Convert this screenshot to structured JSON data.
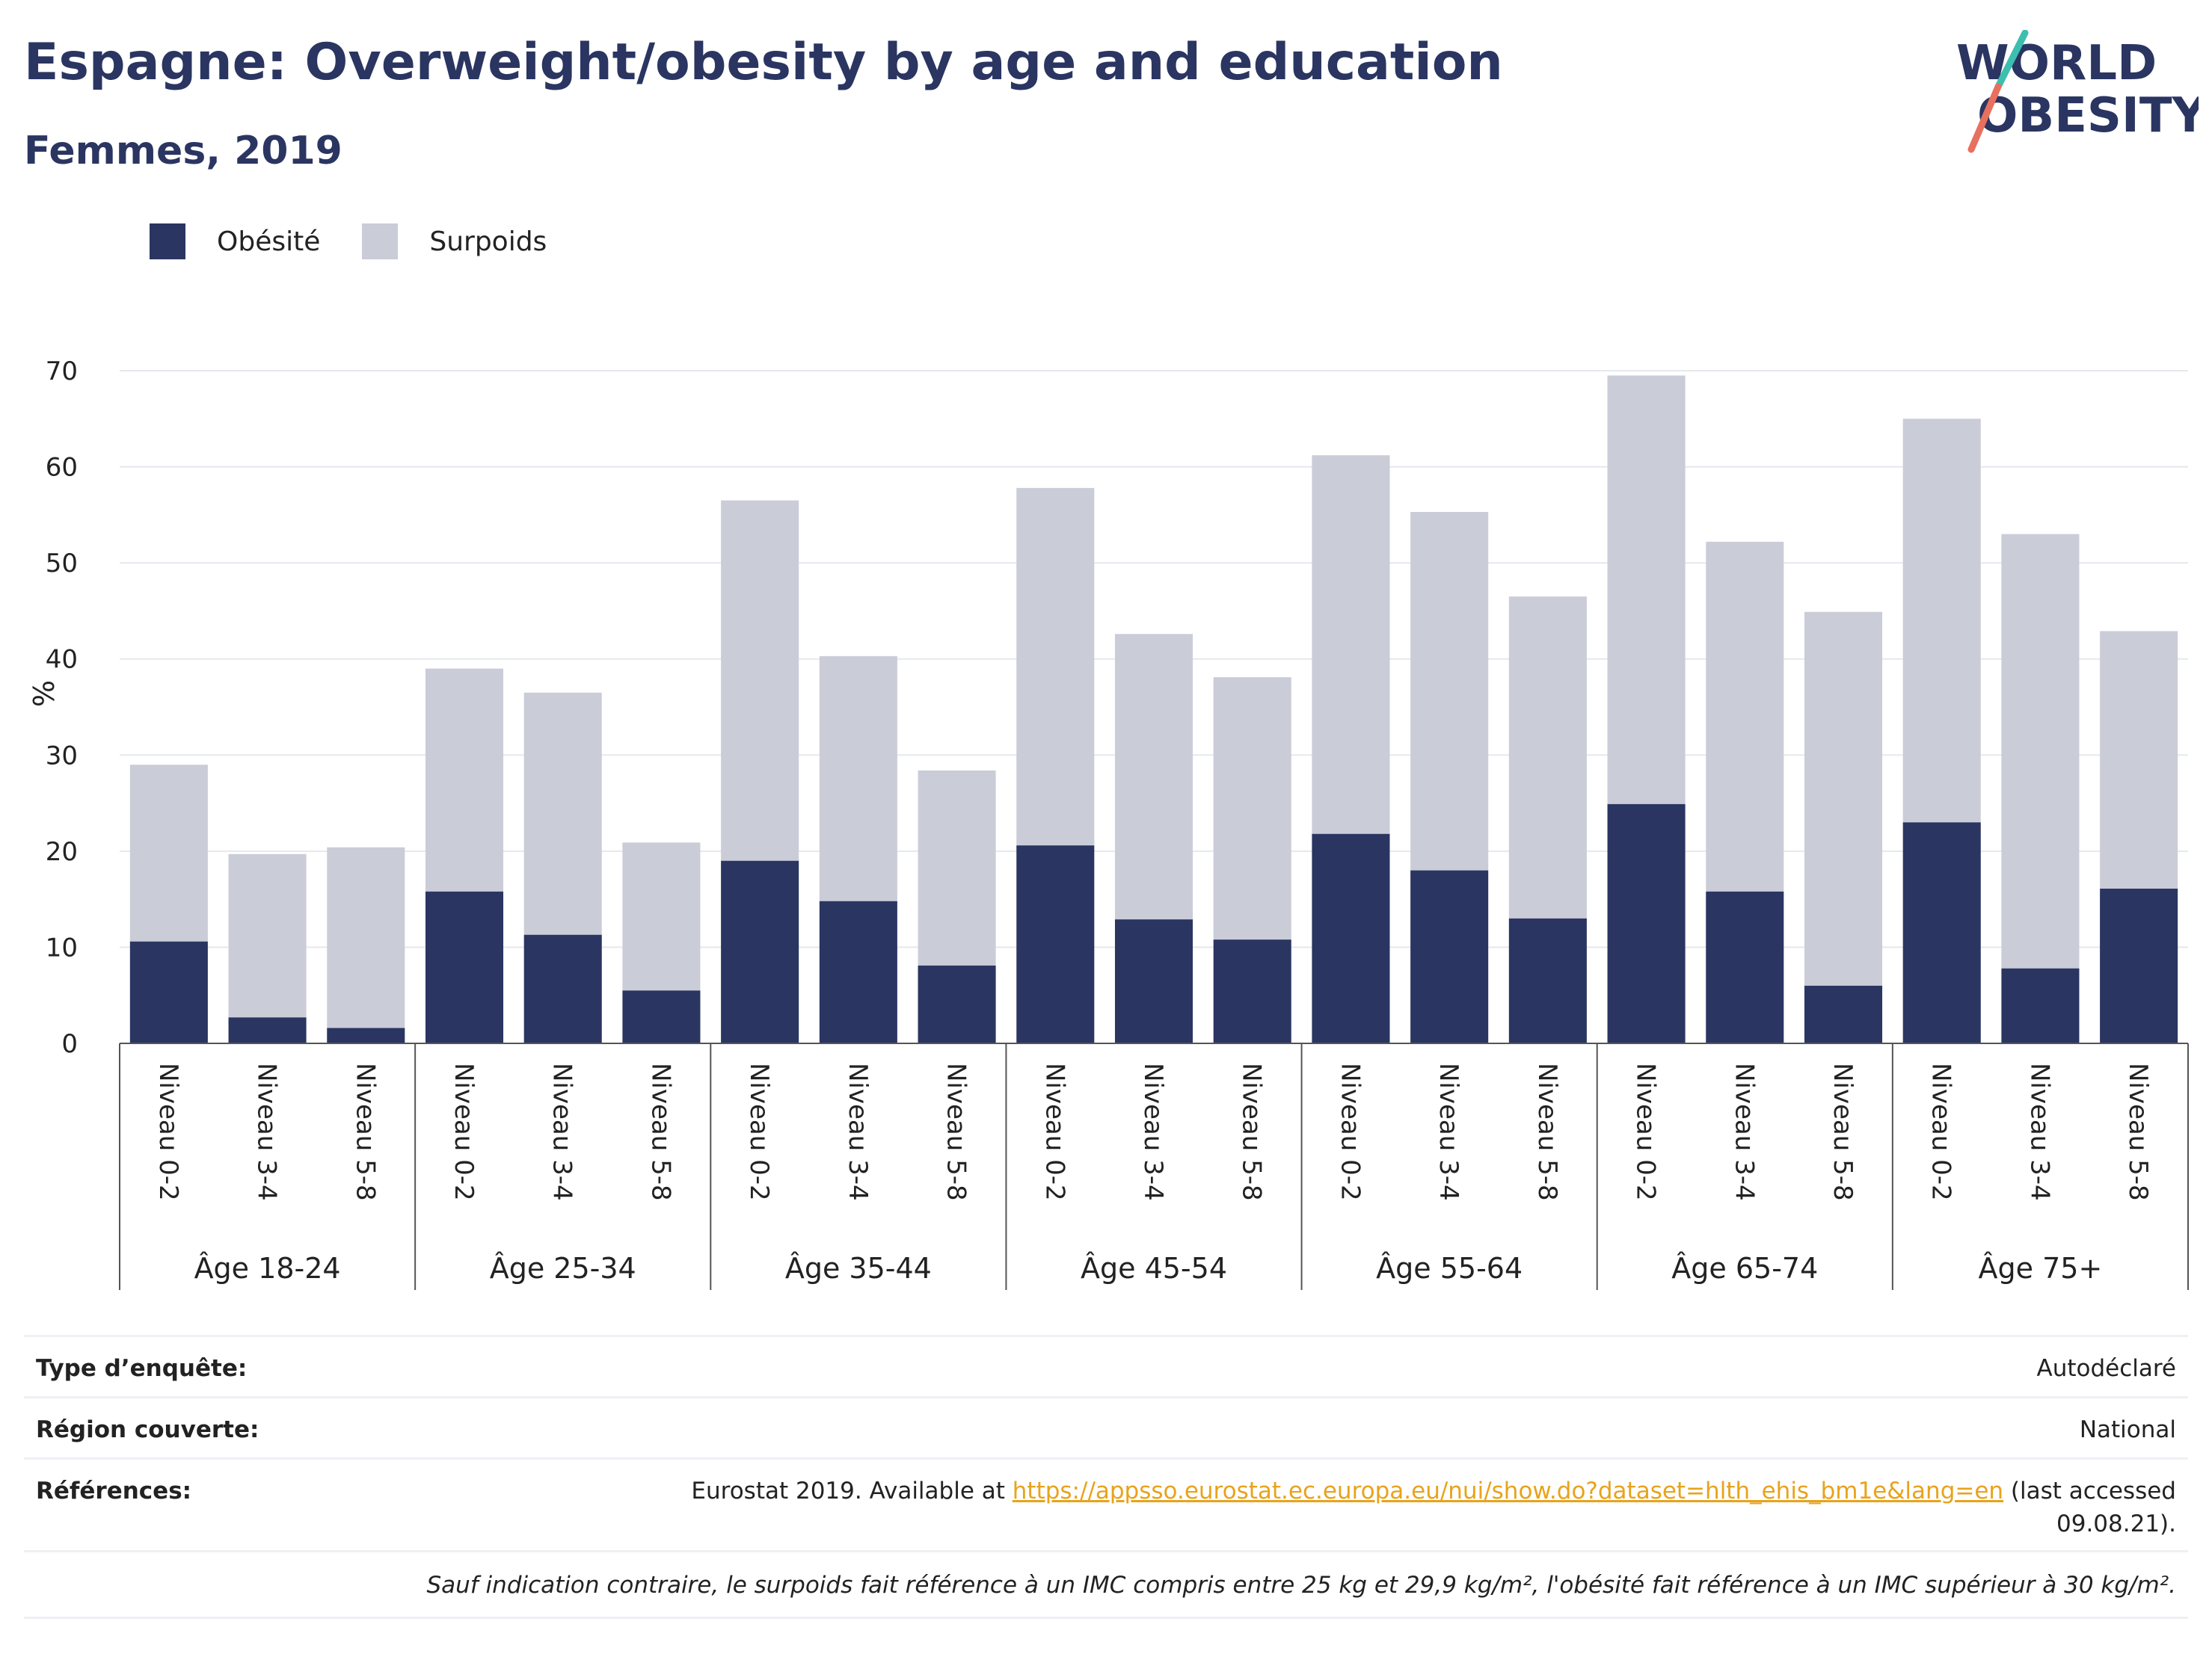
{
  "header": {
    "title": "Espagne: Overweight/obesity by age and education",
    "subtitle": "Femmes, 2019",
    "logo_line1": "WORLD",
    "logo_line2": "OBESITY"
  },
  "colors": {
    "obesity": "#2a3561",
    "overweight": "#caccd8",
    "title": "#2a3561",
    "link": "#e8a31b",
    "logo_teal": "#3cbfae",
    "logo_coral": "#e8705e"
  },
  "chart_data": {
    "type": "bar",
    "stacked": true,
    "ylabel": "%",
    "ylim": [
      0,
      70
    ],
    "yticks": [
      0,
      10,
      20,
      30,
      40,
      50,
      60,
      70
    ],
    "grid": true,
    "legend_position": "top-left",
    "group_label_prefix": "Âge",
    "groups": [
      "Âge 18-24",
      "Âge 25-34",
      "Âge 35-44",
      "Âge 45-54",
      "Âge 55-64",
      "Âge 65-74",
      "Âge 75+"
    ],
    "sub_categories": [
      "Niveau 0-2",
      "Niveau 3-4",
      "Niveau 5-8"
    ],
    "series": [
      {
        "name": "Obésité",
        "color": "#2a3561",
        "values": [
          10.6,
          2.7,
          1.6,
          15.8,
          11.3,
          5.5,
          19.0,
          14.8,
          8.1,
          20.6,
          12.9,
          10.8,
          21.8,
          18.0,
          13.0,
          24.9,
          15.8,
          6.0,
          23.0,
          7.8,
          16.1
        ]
      },
      {
        "name": "Surpoids",
        "color": "#caccd8",
        "values": [
          18.4,
          17.0,
          18.8,
          23.2,
          25.2,
          15.4,
          37.5,
          25.5,
          20.3,
          37.2,
          29.7,
          27.3,
          39.4,
          37.3,
          33.5,
          44.6,
          36.4,
          38.9,
          42.0,
          45.2,
          26.8
        ]
      }
    ]
  },
  "info": {
    "survey_label": "Type d’enquête:",
    "survey_value": "Autodéclaré",
    "region_label": "Région couverte:",
    "region_value": "National",
    "ref_label": "Références:",
    "ref_prefix": "Eurostat 2019. Available at ",
    "ref_link": "https://appsso.eurostat.ec.europa.eu/nui/show.do?dataset=hlth_ehis_bm1e&lang=en",
    "ref_suffix_1": " (last accessed",
    "ref_suffix_2": "09.08.21).",
    "note": "Sauf indication contraire, le surpoids fait référence à un IMC compris entre 25 kg et 29,9 kg/m², l'obésité fait référence à un IMC supérieur à 30 kg/m²."
  }
}
